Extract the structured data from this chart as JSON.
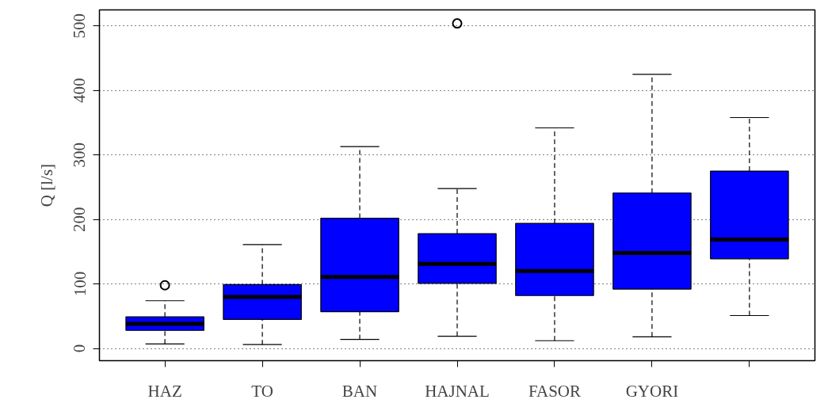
{
  "chart_data": {
    "type": "box",
    "ylabel": "Q [l/s]",
    "categories": [
      "HAZ",
      "TO",
      "BAN",
      "HAJNAL",
      "FASOR",
      "GYORI",
      null
    ],
    "color": "#0000ff",
    "boxes": [
      {
        "low": 7,
        "q1": 28,
        "median": 38,
        "q3": 49,
        "high": 74,
        "outliers": [
          98
        ]
      },
      {
        "low": 6,
        "q1": 45,
        "median": 80,
        "q3": 99,
        "high": 161
      },
      {
        "low": 14,
        "q1": 57,
        "median": 111,
        "q3": 202,
        "high": 313
      },
      {
        "low": 19,
        "q1": 101,
        "median": 131,
        "q3": 178,
        "high": 248,
        "outliers": [
          504
        ]
      },
      {
        "low": 12,
        "q1": 82,
        "median": 120,
        "q3": 194,
        "high": 342
      },
      {
        "low": 18,
        "q1": 92,
        "median": 148,
        "q3": 241,
        "high": 425
      },
      {
        "low": 51,
        "q1": 139,
        "median": 169,
        "q3": 275,
        "high": 358
      }
    ],
    "ylim": [
      -19,
      525
    ],
    "yticks": [
      0,
      100,
      200,
      300,
      400,
      500
    ],
    "grid": "y"
  }
}
